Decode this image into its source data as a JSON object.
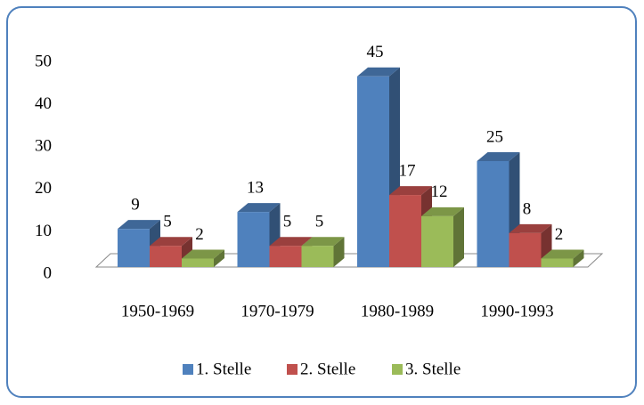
{
  "chart_data": {
    "type": "bar3d",
    "categories": [
      "1950-1969",
      "1970-1979",
      "1980-1989",
      "1990-1993"
    ],
    "series": [
      {
        "name": "1. Stelle",
        "color": "#4f81bd",
        "values": [
          9,
          13,
          45,
          25
        ]
      },
      {
        "name": "2. Stelle",
        "color": "#c0504d",
        "values": [
          5,
          5,
          17,
          8
        ]
      },
      {
        "name": "3. Stelle",
        "color": "#9bbb59",
        "values": [
          2,
          5,
          12,
          2
        ]
      }
    ],
    "ylim": [
      0,
      50
    ],
    "yticks": [
      0,
      10,
      20,
      30,
      40,
      50
    ],
    "grid": false,
    "legend": "bottom",
    "data_labels": true
  }
}
